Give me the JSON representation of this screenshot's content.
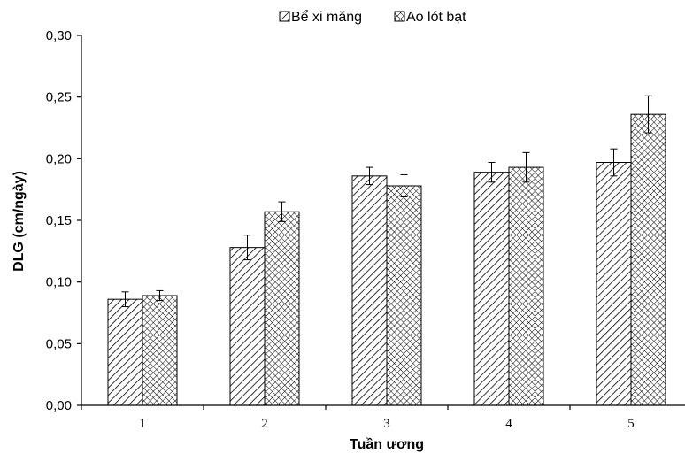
{
  "chart_data": {
    "type": "bar",
    "title": "",
    "xlabel": "Tuần ương",
    "ylabel": "DLG (cm/ngày)",
    "categories": [
      "1",
      "2",
      "3",
      "4",
      "5"
    ],
    "ylim": [
      0,
      0.3
    ],
    "yticks": [
      "0,00",
      "0,05",
      "0,10",
      "0,15",
      "0,20",
      "0,25",
      "0,30"
    ],
    "grid": false,
    "legend_position": "top-center",
    "series": [
      {
        "name": "Bể xi măng",
        "pattern": "diagonal-hatch",
        "values": [
          0.086,
          0.128,
          0.186,
          0.189,
          0.197
        ],
        "errors": [
          0.006,
          0.01,
          0.007,
          0.008,
          0.011
        ]
      },
      {
        "name": "Ao lót bạt",
        "pattern": "crosshatch",
        "values": [
          0.089,
          0.157,
          0.178,
          0.193,
          0.236
        ],
        "errors": [
          0.004,
          0.008,
          0.009,
          0.012,
          0.015
        ]
      }
    ]
  }
}
